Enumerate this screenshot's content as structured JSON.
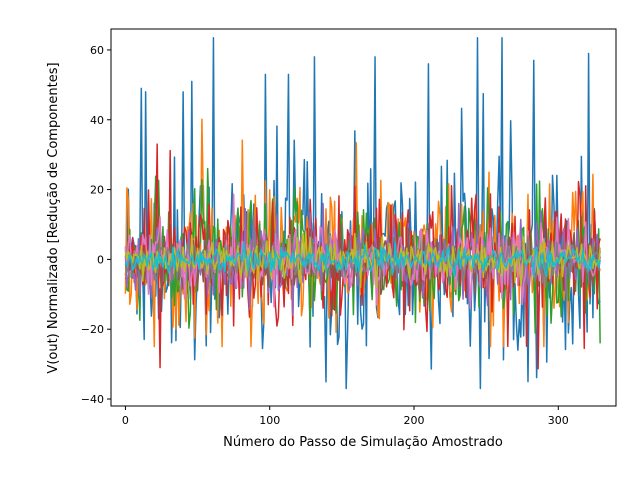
{
  "chart_data": {
    "type": "line",
    "title": "",
    "xlabel": "Número do Passo de Simulação Amostrado",
    "ylabel": "V(out) Normalizado [Redução de Componentes]",
    "xlim": [
      -10,
      340
    ],
    "ylim": [
      -42,
      66
    ],
    "x_ticks": [
      0,
      100,
      200,
      300
    ],
    "x_tick_labels": [
      "0",
      "100",
      "200",
      "300"
    ],
    "y_ticks": [
      -40,
      -20,
      0,
      20,
      40,
      60
    ],
    "y_tick_labels": [
      "−40",
      "−20",
      "0",
      "20",
      "40",
      "60"
    ],
    "grid": false,
    "legend": "none",
    "x_range": [
      0,
      329
    ],
    "num_points": 330,
    "series": [
      {
        "color": "#1f77b4",
        "amplitude": 17,
        "values_sample": {
          "min": -37,
          "max": 63.5,
          "peaks": [
            [
              61,
              63.5
            ],
            [
              244,
              63.5
            ],
            [
              153,
              -37
            ]
          ]
        }
      },
      {
        "color": "#ff7f0e",
        "amplitude": 12,
        "values_sample": {
          "min": -25,
          "max": 41
        }
      },
      {
        "color": "#2ca02c",
        "amplitude": 10,
        "values_sample": {
          "min": -25,
          "max": 26
        }
      },
      {
        "color": "#d62728",
        "amplitude": 10,
        "values_sample": {
          "min": -36,
          "max": 36
        }
      },
      {
        "color": "#9467bd",
        "amplitude": 6,
        "values_sample": {
          "min": -16,
          "max": 16
        }
      },
      {
        "color": "#8c564b",
        "amplitude": 4,
        "values_sample": {
          "min": -10,
          "max": 10
        }
      },
      {
        "color": "#e377c2",
        "amplitude": 5,
        "values_sample": {
          "min": -14,
          "max": 30
        }
      },
      {
        "color": "#7f7f7f",
        "amplitude": 3,
        "values_sample": {
          "min": -8,
          "max": 8
        }
      },
      {
        "color": "#bcbd22",
        "amplitude": 3,
        "values_sample": {
          "min": -8,
          "max": 8
        }
      },
      {
        "color": "#17becf",
        "amplitude": 2,
        "values_sample": {
          "min": -5,
          "max": 5
        }
      }
    ]
  }
}
